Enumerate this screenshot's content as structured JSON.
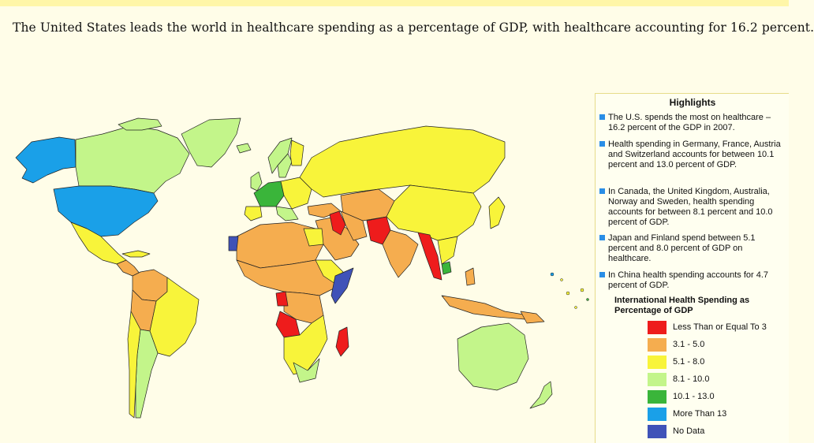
{
  "title": "The United States leads the world in healthcare spending as a percentage of GDP, with healthcare accounting for 16.2 percent.",
  "panel": {
    "heading": "Highlights",
    "highlights": [
      "The U.S. spends the most on healthcare – 16.2 percent of the GDP in 2007.",
      "Health spending in Germany, France, Austria and Switzerland accounts for between 10.1 percent and 13.0 percent of GDP.",
      "In Canada, the United Kingdom, Australia, Norway and Sweden, health spending accounts for between 8.1 percent and 10.0 percent of GDP.",
      "Japan and Finland spend between 5.1 percent and 8.0 percent of GDP on healthcare.",
      "In China health spending accounts for 4.7 percent of GDP."
    ],
    "bullet_color": "#2a8ee6"
  },
  "legend": {
    "title": "International Health Spending as Percentage of GDP",
    "items": [
      {
        "label": "Less Than or Equal To 3",
        "color": "#ee1c1c"
      },
      {
        "label": "3.1 - 5.0",
        "color": "#f5ad4f"
      },
      {
        "label": "5.1 - 8.0",
        "color": "#f8f43a"
      },
      {
        "label": "8.1 - 10.0",
        "color": "#c3f58a"
      },
      {
        "label": "10.1 - 13.0",
        "color": "#3ab53a"
      },
      {
        "label": "More Than 13",
        "color": "#1aa0e8"
      },
      {
        "label": "No Data",
        "color": "#3f52b8"
      }
    ]
  },
  "map_colors": {
    "ocean": "#fffde8",
    "border": "#222222",
    "lte3": "#ee1c1c",
    "c3to5": "#f5ad4f",
    "c5to8": "#f8f43a",
    "c8to10": "#c3f58a",
    "c10to13": "#3ab53a",
    "gt13": "#1aa0e8",
    "nodata": "#3f52b8"
  }
}
